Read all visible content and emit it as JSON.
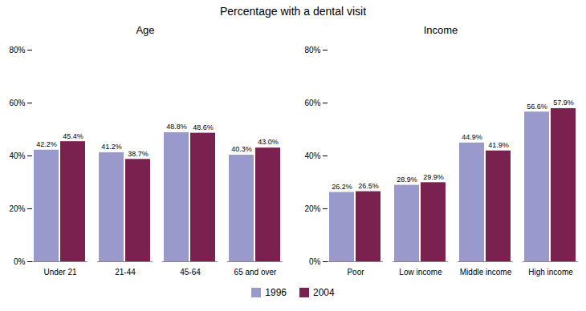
{
  "title": "Percentage with a dental visit",
  "chart_data": [
    {
      "type": "bar",
      "title": "Age",
      "categories": [
        "Under 21",
        "21-44",
        "45-64",
        "65 and over"
      ],
      "series": [
        {
          "name": "1996",
          "color": "#9999cc",
          "values": [
            42.2,
            41.2,
            48.8,
            40.3
          ],
          "value_labels": [
            "42.2%",
            "41.2%",
            "48.8%",
            "40.3%"
          ]
        },
        {
          "name": "2004",
          "color": "#7b2150",
          "values": [
            45.4,
            38.7,
            48.6,
            43.0
          ],
          "value_labels": [
            "45.4%",
            "38.7%",
            "48.6%",
            "43.0%"
          ]
        }
      ],
      "ylim": [
        0,
        80
      ],
      "yticks": [
        {
          "value": 0,
          "label": "0%"
        },
        {
          "value": 20,
          "label": "20%"
        },
        {
          "value": 40,
          "label": "40%"
        },
        {
          "value": 60,
          "label": "60%"
        },
        {
          "value": 80,
          "label": "80%"
        }
      ],
      "grid": false,
      "data_labels": true,
      "legend": "bottom"
    },
    {
      "type": "bar",
      "title": "Income",
      "categories": [
        "Poor",
        "Low income",
        "Middle income",
        "High income"
      ],
      "series": [
        {
          "name": "1996",
          "color": "#9999cc",
          "values": [
            26.2,
            28.9,
            44.9,
            56.6
          ],
          "value_labels": [
            "26.2%",
            "28.9%",
            "44.9%",
            "56.6%"
          ]
        },
        {
          "name": "2004",
          "color": "#7b2150",
          "values": [
            26.5,
            29.9,
            41.9,
            57.9
          ],
          "value_labels": [
            "26.5%",
            "29.9%",
            "41.9%",
            "57.9%"
          ]
        }
      ],
      "ylim": [
        0,
        80
      ],
      "yticks": [
        {
          "value": 0,
          "label": "0%"
        },
        {
          "value": 20,
          "label": "20%"
        },
        {
          "value": 40,
          "label": "40%"
        },
        {
          "value": 60,
          "label": "60%"
        },
        {
          "value": 80,
          "label": "80%"
        }
      ],
      "grid": false,
      "data_labels": true,
      "legend": "bottom"
    }
  ]
}
